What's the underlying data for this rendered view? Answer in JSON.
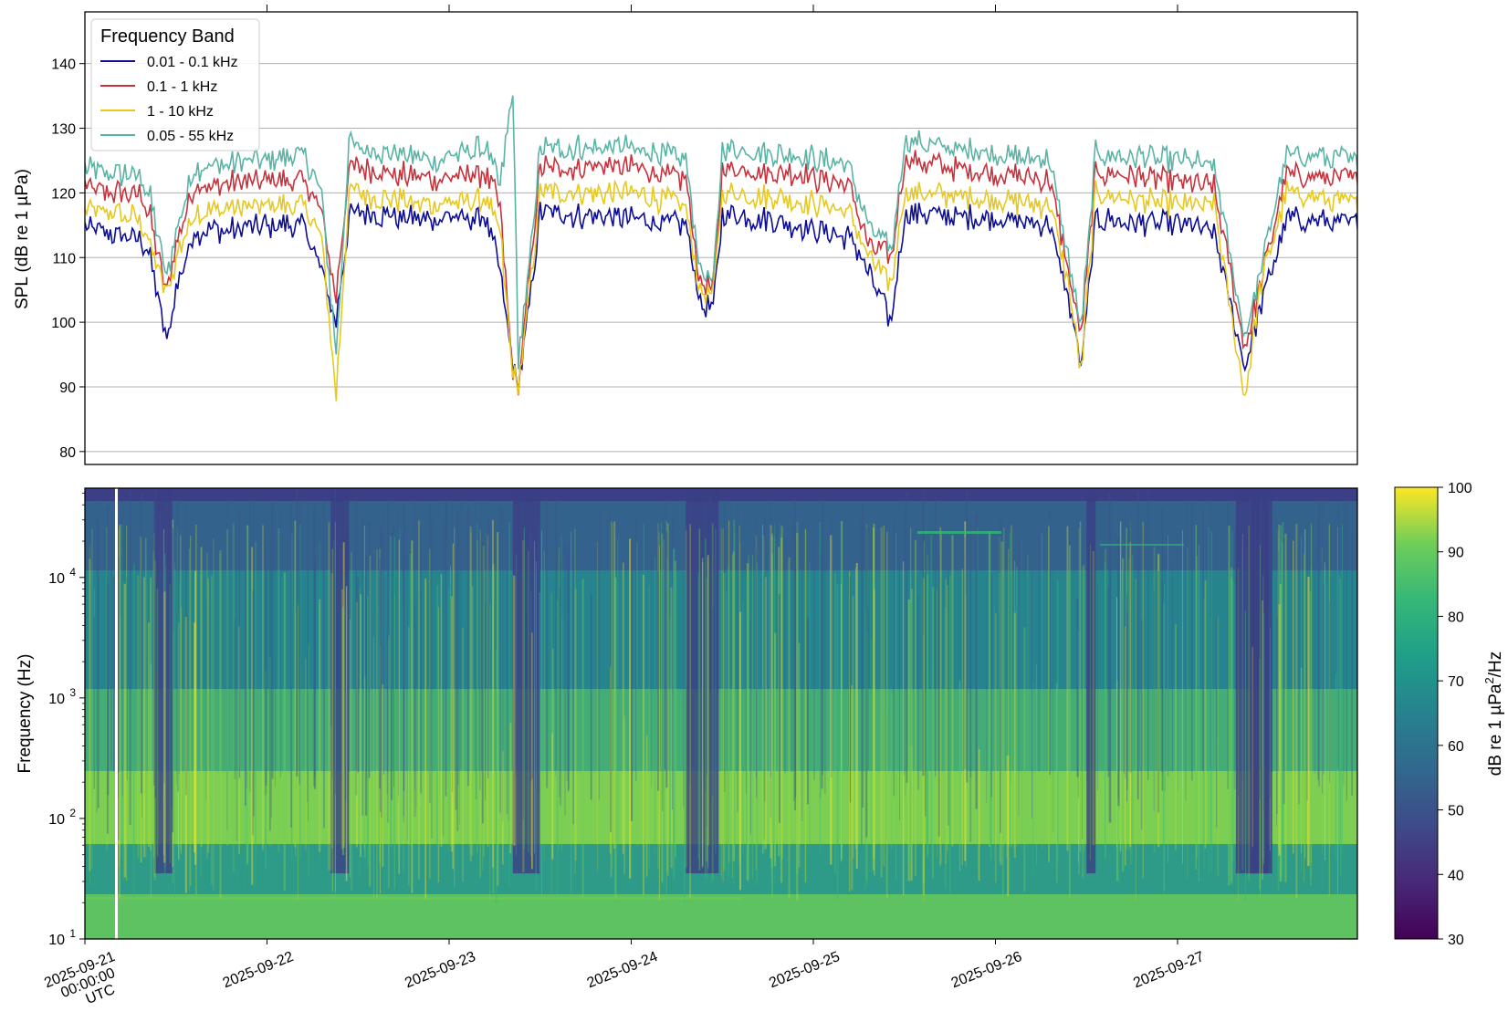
{
  "chart_data": [
    {
      "type": "line",
      "title": "",
      "xlabel": "",
      "ylabel": "SPL (dB re 1 µPa)",
      "ylim": [
        78,
        148
      ],
      "xlim_days": [
        0,
        7
      ],
      "yticks": [
        80,
        90,
        100,
        110,
        120,
        130,
        140
      ],
      "grid": "horizontal",
      "legend": {
        "title": "Frequency Band",
        "placement": "top-left"
      },
      "x_anchor_days": [
        0,
        0.1,
        0.3,
        0.36,
        0.45,
        0.5,
        0.6,
        1.0,
        1.2,
        1.3,
        1.38,
        1.45,
        1.5,
        1.9,
        2.2,
        2.28,
        2.35,
        2.38,
        2.42,
        2.5,
        3.0,
        3.3,
        3.38,
        3.45,
        3.5,
        3.9,
        4.2,
        4.3,
        4.43,
        4.5,
        5.0,
        5.3,
        5.4,
        5.47,
        5.55,
        6.0,
        6.2,
        6.37,
        6.45,
        6.6,
        7.0
      ],
      "series": [
        {
          "name": "0.01 - 0.1 kHz",
          "color": "#0d0d96",
          "values": [
            115,
            114,
            113,
            110,
            97,
            105,
            114,
            115,
            115,
            108,
            100,
            116,
            117,
            116,
            116,
            108,
            93,
            90,
            98,
            117,
            116,
            115,
            103,
            102,
            117,
            115,
            113,
            108,
            100,
            117,
            116,
            115,
            104,
            93,
            116,
            115,
            114,
            93,
            102,
            116,
            115
          ]
        },
        {
          "name": "0.1 - 1 kHz",
          "color": "#c8323c",
          "values": [
            121,
            120,
            120,
            116,
            104,
            112,
            121,
            122,
            122,
            117,
            104,
            124,
            124,
            122,
            123,
            118,
            92,
            90,
            101,
            124,
            124,
            122,
            106,
            105,
            124,
            123,
            121,
            112,
            110,
            125,
            123,
            122,
            108,
            98,
            123,
            122,
            121,
            96,
            105,
            123,
            122
          ]
        },
        {
          "name": "1 - 10 kHz",
          "color": "#e6c81e",
          "values": [
            117,
            117,
            116,
            112,
            104,
            110,
            117,
            118,
            118,
            113,
            89,
            120,
            120,
            118,
            119,
            114,
            92,
            90,
            99,
            120,
            120,
            118,
            104,
            104,
            120,
            119,
            117,
            110,
            106,
            120,
            119,
            118,
            106,
            92,
            120,
            118,
            118,
            88,
            105,
            120,
            118
          ]
        },
        {
          "name": "0.05 - 55 kHz",
          "color": "#5ab4a5",
          "values": [
            124,
            123,
            123,
            119,
            107,
            114,
            124,
            125,
            126,
            120,
            95,
            128,
            127,
            125,
            127,
            121,
            136,
            95,
            103,
            127,
            127,
            125,
            108,
            106,
            127,
            126,
            124,
            115,
            111,
            128,
            126,
            125,
            110,
            99,
            126,
            125,
            124,
            98,
            107,
            126,
            125
          ]
        }
      ]
    },
    {
      "type": "heatmap",
      "title": "",
      "xlabel": "",
      "ylabel": "Frequency (Hz)",
      "yscale": "log",
      "ylim": [
        10,
        55000
      ],
      "yticks": [
        10,
        100,
        1000,
        10000
      ],
      "ytick_labels": [
        "10",
        "10",
        "10",
        "10"
      ],
      "ytick_exponents": [
        "1",
        "2",
        "3",
        "4"
      ],
      "xticks": [
        "2025-09-21",
        "2025-09-22",
        "2025-09-23",
        "2025-09-24",
        "2025-09-25",
        "2025-09-26",
        "2025-09-27"
      ],
      "xtick_first_lines": [
        "2025-09-21",
        "00:00:00",
        "UTC"
      ],
      "colormap": "viridis",
      "colorbar": {
        "label": "dB re 1 µPa",
        "label_superscript": "2",
        "label_suffix": "/Hz",
        "range": [
          30,
          100
        ],
        "ticks": [
          30,
          40,
          50,
          60,
          70,
          80,
          90,
          100
        ]
      },
      "quiet_periods_days": [
        [
          0.38,
          0.48
        ],
        [
          1.35,
          1.45
        ],
        [
          2.35,
          2.5
        ],
        [
          3.3,
          3.48
        ],
        [
          5.5,
          5.55
        ],
        [
          6.32,
          6.5
        ],
        [
          6.4,
          6.52
        ]
      ]
    }
  ]
}
